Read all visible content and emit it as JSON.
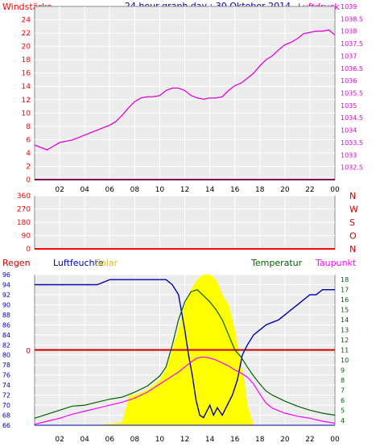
{
  "header": {
    "title": "24 hour graph day : 30 Oktober 2014",
    "left_label": "Windstärke",
    "right_label": "Luftdruck"
  },
  "colors": {
    "wind": "#ff0000",
    "pressure": "#e000e0",
    "direction": "#ff0000",
    "rain": "#cc0000",
    "humidity": "#0000b0",
    "solar": "#ffff00",
    "temperature": "#006000",
    "dewpoint": "#ff00ff",
    "grid": "#ffffff",
    "frame": "#888888",
    "time_axis": "#0000b0"
  },
  "chart_data": [
    {
      "type": "line",
      "x_label_list": [
        "02",
        "04",
        "06",
        "08",
        "10",
        "12",
        "14",
        "16",
        "18",
        "20",
        "22",
        "00"
      ],
      "xlim": [
        0,
        24
      ],
      "left_axis": {
        "label": "Windstärke",
        "ylim": [
          0,
          26
        ],
        "ticks": [
          "0",
          "2",
          "4",
          "6",
          "8",
          "10",
          "12",
          "14",
          "16",
          "18",
          "20",
          "22",
          "24"
        ]
      },
      "right_axis": {
        "label": "Luftdruck",
        "ylim": [
          1032,
          1039
        ],
        "ticks": [
          "1032.5",
          "1033",
          "1033.5",
          "1034",
          "1034.5",
          "1035",
          "1035.5",
          "1036",
          "1036.5",
          "1037",
          "1037.5",
          "1038",
          "1038.5",
          "1039"
        ]
      },
      "series": [
        {
          "name": "Luftdruck",
          "axis": "right",
          "x": [
            0.0,
            0.5,
            1.0,
            1.5,
            2.0,
            2.5,
            3.0,
            3.5,
            4.0,
            4.5,
            5.0,
            5.5,
            6.0,
            6.5,
            7.0,
            7.5,
            8.0,
            8.5,
            9.0,
            9.5,
            10.0,
            10.5,
            11.0,
            11.5,
            12.0,
            12.5,
            13.0,
            13.5,
            14.0,
            14.5,
            15.0,
            15.5,
            16.0,
            16.5,
            17.0,
            17.5,
            18.0,
            18.5,
            19.0,
            19.5,
            20.0,
            20.5,
            21.0,
            21.5,
            22.0,
            22.5,
            23.0,
            23.5,
            24.0
          ],
          "y": [
            1033.4,
            1033.3,
            1033.2,
            1033.35,
            1033.5,
            1033.55,
            1033.6,
            1033.7,
            1033.8,
            1033.9,
            1034.0,
            1034.1,
            1034.2,
            1034.35,
            1034.6,
            1034.9,
            1035.15,
            1035.3,
            1035.35,
            1035.35,
            1035.4,
            1035.6,
            1035.7,
            1035.7,
            1035.6,
            1035.4,
            1035.3,
            1035.25,
            1035.3,
            1035.3,
            1035.35,
            1035.6,
            1035.8,
            1035.9,
            1036.1,
            1036.3,
            1036.6,
            1036.85,
            1037.0,
            1037.25,
            1037.45,
            1037.55,
            1037.7,
            1037.9,
            1037.95,
            1038.0,
            1038.0,
            1038.05,
            1037.85
          ]
        },
        {
          "name": "Windstärke",
          "axis": "left",
          "x": [
            0,
            24
          ],
          "y": [
            0,
            0
          ]
        }
      ]
    },
    {
      "type": "line",
      "x_label_list": [
        "02",
        "04",
        "06",
        "08",
        "10",
        "12",
        "14",
        "16",
        "18",
        "20",
        "22",
        "00"
      ],
      "xlim": [
        0,
        24
      ],
      "left_axis": {
        "ylim": [
          0,
          360
        ],
        "ticks": [
          "0",
          "90",
          "180",
          "270",
          "360"
        ]
      },
      "right_axis_labels": [
        "N",
        "W",
        "S",
        "O",
        "N"
      ],
      "series": [
        {
          "x": [
            0,
            24
          ],
          "y": [
            0,
            0
          ]
        }
      ]
    },
    {
      "type": "area",
      "x_label_list": [
        "02",
        "04",
        "06",
        "08",
        "10",
        "12",
        "14",
        "16",
        "18",
        "20",
        "22",
        "00"
      ],
      "xlim": [
        0,
        24
      ],
      "legend": [
        "Regen",
        "Luftfeuchte",
        "Solar",
        "Temperatur",
        "Taupunkt"
      ],
      "left_axis": {
        "ylim": [
          66,
          96
        ],
        "ticks": [
          "66",
          "68",
          "70",
          "72",
          "74",
          "76",
          "78",
          "80",
          "82",
          "84",
          "86",
          "88",
          "90",
          "92",
          "94",
          "96"
        ]
      },
      "right_axis": {
        "ylim": [
          3.5,
          18.5
        ],
        "ticks": [
          "4",
          "5",
          "6",
          "7",
          "8",
          "9",
          "10",
          "11",
          "12",
          "13",
          "14",
          "15",
          "16",
          "17",
          "18"
        ]
      },
      "rain": {
        "label": "0",
        "value": 0,
        "level_humidity_units": 81
      },
      "series": [
        {
          "name": "Luftfeuchte",
          "axis": "left",
          "x": [
            0.0,
            1.0,
            2.0,
            3.0,
            4.0,
            5.0,
            5.5,
            6.0,
            7.0,
            8.0,
            9.0,
            10.0,
            10.5,
            11.0,
            11.5,
            12.0,
            12.3,
            12.6,
            12.9,
            13.2,
            13.5,
            13.8,
            14.0,
            14.3,
            14.6,
            15.0,
            15.4,
            15.8,
            16.2,
            16.6,
            17.0,
            17.5,
            18.0,
            18.5,
            19.0,
            19.5,
            20.0,
            20.5,
            21.0,
            21.5,
            22.0,
            22.5,
            23.0,
            23.5,
            24.0
          ],
          "y": [
            94,
            94,
            94,
            94,
            94,
            94,
            94.5,
            95,
            95,
            95,
            95,
            95,
            95,
            94,
            92,
            85,
            80,
            76,
            71,
            68,
            67.5,
            69,
            70,
            68,
            69.5,
            68,
            70,
            72,
            75,
            80,
            82,
            84,
            85,
            86,
            86.5,
            87,
            88,
            89,
            90,
            91,
            92,
            92,
            93,
            93,
            93
          ]
        },
        {
          "name": "Solar",
          "axis": "left",
          "x": [
            0.0,
            5.0,
            7.0,
            7.6,
            8.0,
            9.0,
            10.0,
            10.5,
            11.0,
            11.5,
            12.0,
            12.5,
            13.0,
            13.5,
            14.0,
            14.5,
            15.0,
            15.5,
            16.0,
            16.5,
            16.8,
            17.0,
            17.5,
            20.0,
            24.0
          ],
          "y": [
            66,
            66,
            66.5,
            72,
            72,
            73,
            75,
            77,
            81,
            85,
            90,
            93,
            95,
            96,
            96,
            95,
            92,
            90,
            85,
            78,
            74,
            70,
            66,
            66,
            66
          ]
        },
        {
          "name": "Temperatur",
          "axis": "right",
          "x": [
            0.0,
            1.0,
            2.0,
            3.0,
            4.0,
            5.0,
            6.0,
            7.0,
            8.0,
            9.0,
            10.0,
            10.5,
            11.0,
            11.5,
            12.0,
            12.5,
            13.0,
            13.5,
            14.0,
            14.5,
            15.0,
            15.5,
            16.0,
            16.5,
            17.0,
            17.5,
            18.0,
            18.5,
            19.0,
            20.0,
            21.0,
            22.0,
            23.0,
            24.0
          ],
          "y": [
            4.2,
            4.6,
            5.0,
            5.4,
            5.5,
            5.8,
            6.1,
            6.3,
            6.8,
            7.4,
            8.4,
            9.3,
            11.5,
            14.0,
            15.8,
            16.8,
            17.0,
            16.4,
            15.8,
            15.0,
            14.0,
            12.5,
            11.0,
            10.3,
            9.3,
            8.4,
            7.6,
            6.9,
            6.5,
            5.9,
            5.4,
            5.0,
            4.7,
            4.5
          ]
        },
        {
          "name": "Taupunkt",
          "axis": "right",
          "x": [
            0.0,
            1.0,
            2.0,
            3.0,
            4.0,
            5.0,
            6.0,
            7.0,
            8.0,
            9.0,
            10.0,
            11.0,
            11.5,
            12.0,
            12.5,
            13.0,
            13.5,
            14.0,
            14.5,
            15.0,
            15.5,
            16.0,
            16.5,
            17.0,
            17.5,
            18.0,
            18.5,
            19.0,
            20.0,
            21.0,
            22.0,
            23.0,
            24.0
          ],
          "y": [
            3.6,
            3.9,
            4.2,
            4.6,
            4.9,
            5.2,
            5.5,
            5.8,
            6.2,
            6.8,
            7.6,
            8.4,
            8.8,
            9.3,
            9.8,
            10.2,
            10.3,
            10.2,
            10.0,
            9.7,
            9.4,
            9.0,
            8.7,
            8.3,
            7.6,
            6.6,
            5.7,
            5.2,
            4.7,
            4.4,
            4.2,
            3.9,
            3.7
          ]
        }
      ]
    }
  ]
}
